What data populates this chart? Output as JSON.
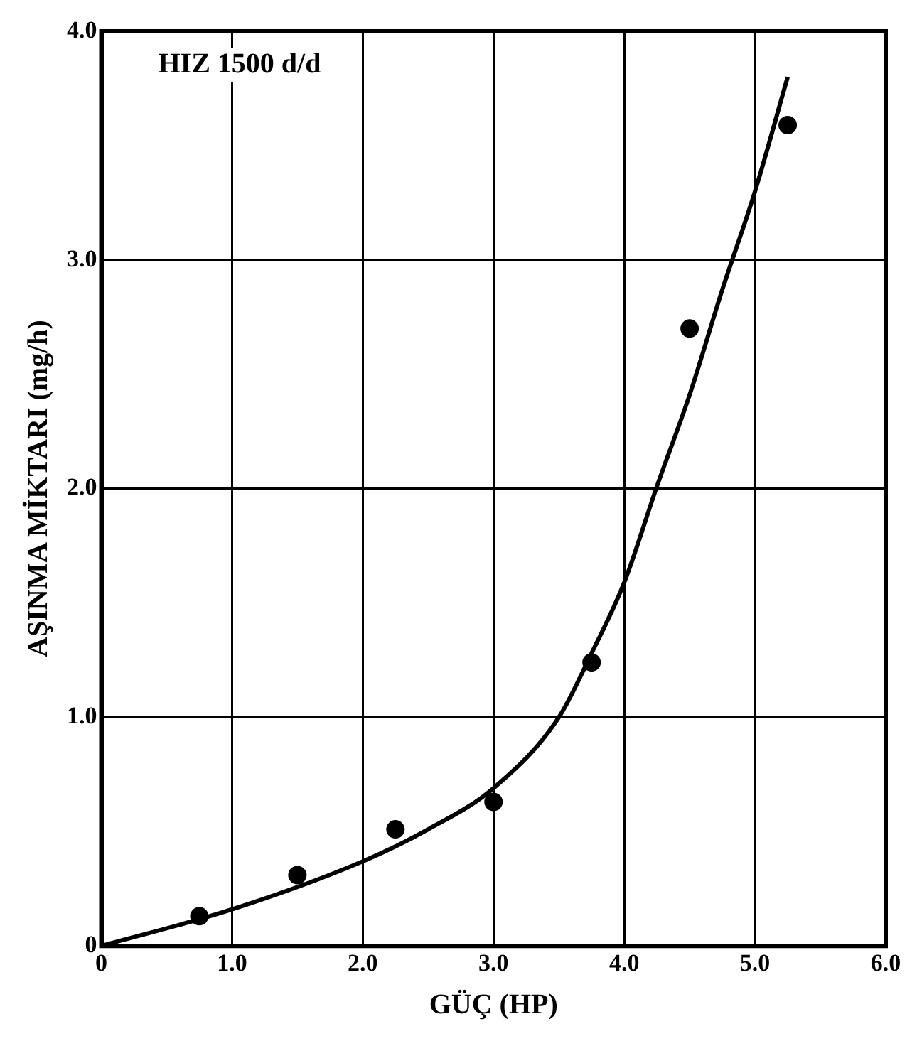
{
  "chart_data": {
    "type": "scatter",
    "xlabel": "GÜÇ (HP)",
    "ylabel": "AŞINMA MİKTARI (mg/h)",
    "annotations": [
      "HIZ 1500 d/d"
    ],
    "xlim": [
      0,
      6
    ],
    "ylim": [
      0,
      4
    ],
    "xticks": [
      0,
      {
        "value": 1,
        "label": "1.0"
      },
      {
        "value": 2,
        "label": "2.0"
      },
      {
        "value": 3,
        "label": "3.0"
      },
      {
        "value": 4,
        "label": "4.0"
      },
      {
        "value": 5,
        "label": "5.0"
      },
      {
        "value": 6,
        "label": "6.0"
      }
    ],
    "yticks": [
      0,
      {
        "value": 1,
        "label": "1.0"
      },
      {
        "value": 2,
        "label": "2.0"
      },
      {
        "value": 3,
        "label": "3.0"
      },
      {
        "value": 4,
        "label": "4.0"
      }
    ],
    "grid": true,
    "legend": false,
    "series": [
      {
        "color": "#000000",
        "marker": "circle",
        "x": [
          0.75,
          1.5,
          2.25,
          3.0,
          3.75,
          4.5,
          5.25
        ],
        "values": [
          0.13,
          0.31,
          0.51,
          0.63,
          1.24,
          2.7,
          3.59
        ]
      },
      {
        "type": "line",
        "color": "#000000",
        "marker": "none",
        "line_style": "solid",
        "x": [
          0,
          1,
          2,
          2.5,
          3,
          3.5,
          3.75,
          4,
          4.25,
          4.5,
          4.75,
          5,
          5.25
        ],
        "values": [
          0,
          0.16,
          0.37,
          0.51,
          0.69,
          1.0,
          1.28,
          1.59,
          2.01,
          2.41,
          2.87,
          3.3,
          3.8
        ]
      }
    ]
  }
}
